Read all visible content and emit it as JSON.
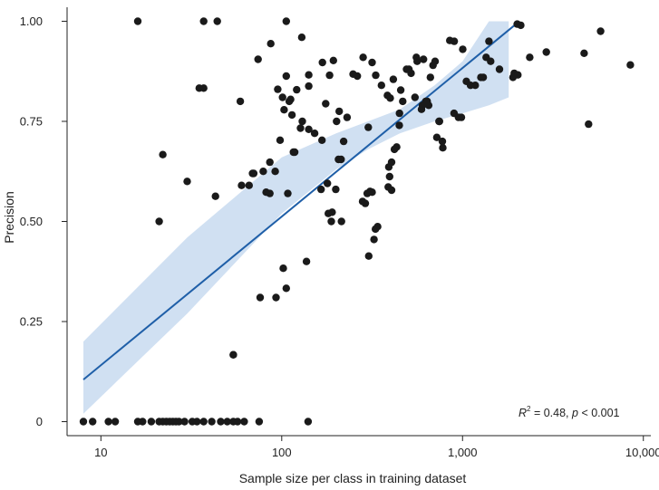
{
  "chart_data": {
    "type": "scatter",
    "x_scale": "log",
    "xlabel": "Sample size per class in training dataset",
    "ylabel": "Precision",
    "xlim": [
      6.5,
      11000
    ],
    "ylim": [
      -0.035,
      1.035
    ],
    "x_ticks": [
      {
        "value": 10,
        "label": "10"
      },
      {
        "value": 100,
        "label": "100"
      },
      {
        "value": 1000,
        "label": "1,000"
      },
      {
        "value": 10000,
        "label": "10,000"
      }
    ],
    "y_ticks": [
      {
        "value": 0,
        "label": "0"
      },
      {
        "value": 0.25,
        "label": "0.25"
      },
      {
        "value": 0.5,
        "label": "0.50"
      },
      {
        "value": 0.75,
        "label": "0.75"
      },
      {
        "value": 1.0,
        "label": "1.00"
      }
    ],
    "grid": false,
    "colors": {
      "points": "#1a1a1a",
      "fit_line": "#1f5fa8",
      "confidence_band": "#c8dbf0"
    },
    "annotation": {
      "r_label": "R",
      "r_sup": "2",
      "r_value": " = 0.48, ",
      "p_label": "p",
      "p_value": " < 0.001"
    },
    "regression": {
      "x": [
        8,
        2000
      ],
      "y": [
        0.105,
        0.995
      ]
    },
    "confidence_band": {
      "x": [
        8,
        30,
        100,
        200,
        300,
        450,
        700,
        1000,
        1400,
        1800
      ],
      "upper": [
        0.2,
        0.46,
        0.66,
        0.72,
        0.75,
        0.78,
        0.84,
        0.9,
        1.0,
        1.0
      ],
      "lower": [
        0.02,
        0.27,
        0.52,
        0.63,
        0.68,
        0.72,
        0.75,
        0.77,
        0.79,
        0.81
      ]
    },
    "series": [
      {
        "x": [
          8,
          9,
          11,
          12,
          16,
          17,
          19,
          21,
          22,
          23,
          24,
          25,
          26,
          27,
          29,
          32,
          34,
          37,
          41,
          46,
          50,
          54,
          57,
          62,
          75,
          140,
          16,
          37,
          44,
          106,
          129,
          35,
          37,
          22,
          21,
          30,
          43,
          59,
          54,
          66,
          69,
          74,
          79,
          87,
          86,
          95,
          101,
          106,
          112,
          121,
          141,
          92,
          108,
          114,
          130,
          141,
          60,
          70,
          82,
          86,
          98,
          103,
          110,
          118,
          127,
          141,
          152,
          167,
          179,
          190,
          199,
          206,
          214,
          168,
          175,
          184,
          193,
          201,
          208,
          220,
          230,
          248,
          262,
          282,
          301,
          316,
          331,
          356,
          384,
          398,
          414,
          432,
          448,
          455,
          467,
          490,
          519,
          546,
          561,
          593,
          608,
          626,
          650,
          687,
          705,
          741,
          778,
          850,
          897,
          985,
          1050,
          1176,
          1301,
          1430,
          1932,
          2022,
          2006,
          2353,
          2906,
          4705,
          5802,
          8470,
          4980,
          102,
          137,
          93,
          76,
          54,
          106,
          116,
          165,
          181,
          188,
          213,
          303,
          339,
          330,
          324,
          316,
          388,
          395,
          405,
          290,
          308,
          297,
          280,
          391,
          405,
          420,
          447,
          505,
          555,
          600,
          638,
          664,
          721,
          745,
          773,
          900,
          950,
          1003,
          1107,
          1263,
          1400,
          1350,
          1600,
          1900,
          2100
        ],
        "y": [
          0,
          0,
          0,
          0,
          0,
          0,
          0,
          0,
          0,
          0,
          0,
          0,
          0,
          0,
          0,
          0,
          0,
          0,
          0,
          0,
          0,
          0,
          0,
          0,
          0,
          0,
          1.0,
          1.0,
          1.0,
          1.0,
          0.96,
          0.833,
          0.833,
          0.667,
          0.5,
          0.6,
          0.563,
          0.8,
          0.167,
          0.59,
          0.62,
          0.905,
          0.625,
          0.944,
          0.57,
          0.83,
          0.81,
          0.863,
          0.805,
          0.829,
          0.866,
          0.625,
          0.57,
          0.766,
          0.75,
          0.73,
          0.59,
          0.62,
          0.573,
          0.648,
          0.703,
          0.779,
          0.8,
          0.673,
          0.733,
          0.838,
          0.72,
          0.703,
          0.595,
          0.523,
          0.58,
          0.655,
          0.5,
          0.897,
          0.794,
          0.865,
          0.902,
          0.75,
          0.775,
          0.7,
          0.76,
          0.868,
          0.863,
          0.91,
          0.735,
          0.897,
          0.865,
          0.84,
          0.815,
          0.808,
          0.855,
          0.686,
          0.77,
          0.828,
          0.8,
          0.88,
          0.87,
          0.81,
          0.9,
          0.78,
          0.905,
          0.8,
          0.79,
          0.89,
          0.9,
          0.75,
          0.684,
          0.952,
          0.77,
          0.76,
          0.85,
          0.84,
          0.86,
          0.9,
          0.87,
          0.866,
          0.993,
          0.91,
          0.923,
          0.92,
          0.975,
          0.891,
          0.743,
          0.383,
          0.4,
          0.31,
          0.31,
          0.167,
          0.333,
          0.673,
          0.58,
          0.52,
          0.5,
          0.655,
          0.4135,
          0.487,
          0.481,
          0.455,
          0.573,
          0.586,
          0.612,
          0.578,
          0.545,
          0.575,
          0.57,
          0.55,
          0.636,
          0.648,
          0.68,
          0.74,
          0.88,
          0.91,
          0.79,
          0.8,
          0.86,
          0.71,
          0.75,
          0.7,
          0.95,
          0.76,
          0.93,
          0.84,
          0.86,
          0.95,
          0.91,
          0.88,
          0.86,
          0.99
        ]
      }
    ]
  }
}
